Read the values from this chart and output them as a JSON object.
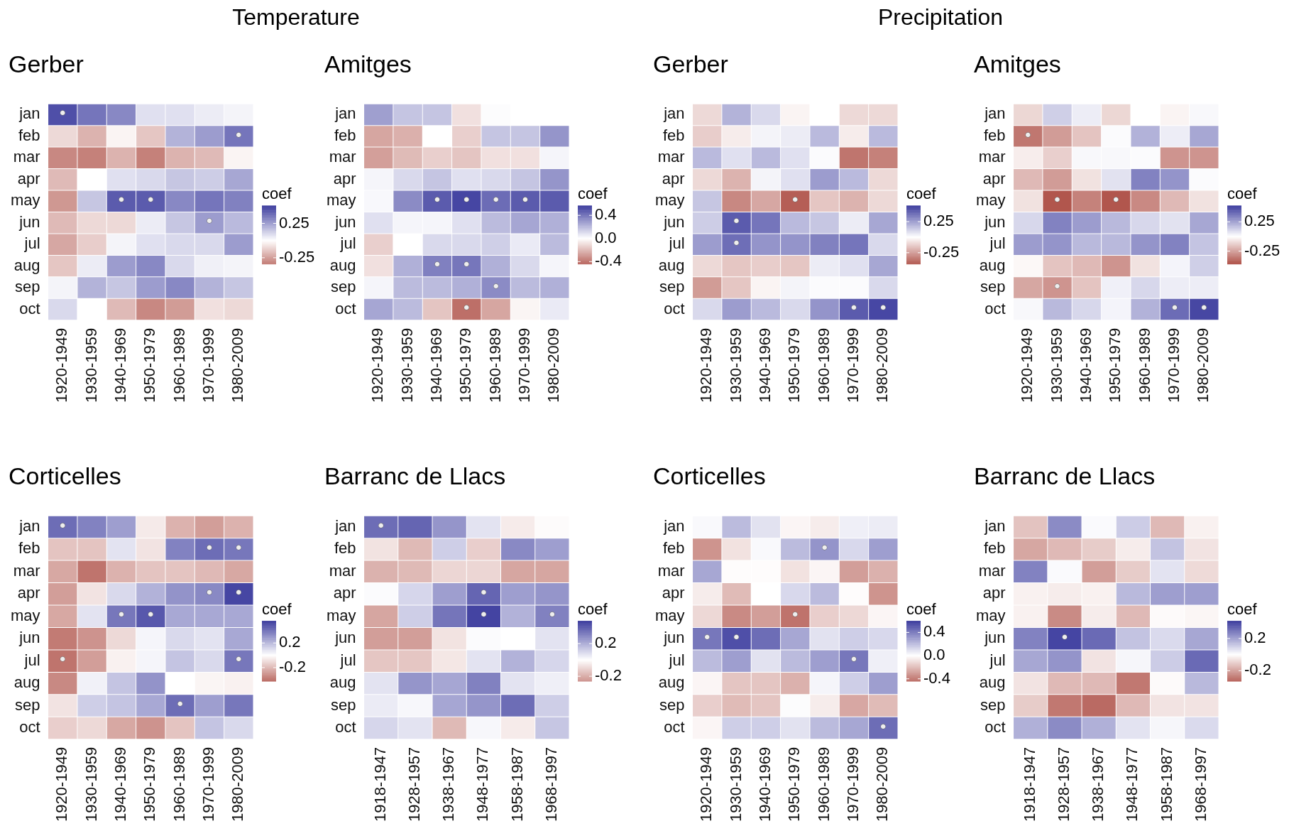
{
  "chart_data": [
    {
      "type": "heatmap",
      "title": "Gerber",
      "annotations": [
        "Temperature"
      ],
      "clabel": "coef",
      "clim": [
        -0.34,
        0.51
      ],
      "cticks": [
        0.25,
        -0.25
      ],
      "categories": [
        "1920-1949",
        "1930-1959",
        "1940-1969",
        "1950-1979",
        "1960-1989",
        "1970-1999",
        "1980-2009"
      ],
      "y_categories": [
        "jan",
        "feb",
        "mar",
        "apr",
        "may",
        "jun",
        "jul",
        "aug",
        "sep",
        "oct"
      ],
      "cells": [
        [
          0.46,
          0.36,
          0.31,
          0.08,
          0.08,
          0.05,
          0.03
        ],
        [
          -0.1,
          -0.2,
          -0.03,
          -0.15,
          0.2,
          0.26,
          0.36
        ],
        [
          -0.31,
          -0.33,
          -0.2,
          -0.33,
          -0.2,
          -0.18,
          -0.03
        ],
        [
          -0.18,
          0,
          0.08,
          0.1,
          0.15,
          0.13,
          0.23
        ],
        [
          -0.27,
          0.15,
          0.43,
          0.43,
          0.31,
          0.36,
          0.33
        ],
        [
          -0.18,
          -0.1,
          -0.1,
          0.05,
          0.15,
          0.26,
          0.18
        ],
        [
          -0.23,
          -0.13,
          0.03,
          0.08,
          0.1,
          0.1,
          0.26
        ],
        [
          -0.15,
          0.05,
          0.26,
          0.31,
          0.1,
          0.04,
          0.03
        ],
        [
          0.03,
          0.2,
          0.15,
          0.26,
          0.31,
          0.2,
          0.15
        ],
        [
          0.1,
          0,
          -0.18,
          -0.31,
          -0.26,
          -0.08,
          -0.1
        ]
      ],
      "cell_labels": [
        [
          "•",
          null,
          null,
          null,
          null,
          null,
          null
        ],
        [
          null,
          null,
          null,
          null,
          null,
          null,
          "•"
        ],
        [
          null,
          null,
          null,
          null,
          null,
          null,
          null
        ],
        [
          null,
          null,
          null,
          null,
          null,
          null,
          null
        ],
        [
          null,
          null,
          "•",
          "•",
          null,
          null,
          null
        ],
        [
          null,
          null,
          null,
          null,
          null,
          "•",
          null
        ],
        [
          null,
          null,
          null,
          null,
          null,
          null,
          null
        ],
        [
          null,
          null,
          null,
          null,
          null,
          null,
          null
        ],
        [
          null,
          null,
          null,
          null,
          null,
          null,
          null
        ],
        [
          null,
          null,
          null,
          null,
          null,
          null,
          null
        ]
      ]
    },
    {
      "type": "heatmap",
      "title": "Amitges",
      "clabel": "coef",
      "clim": [
        -0.44,
        0.57
      ],
      "cticks": [
        0.4,
        {
          "value": 0,
          "label": "0.0"
        },
        -0.4
      ],
      "categories": [
        "1920-1949",
        "1930-1959",
        "1940-1969",
        "1950-1979",
        "1960-1989",
        "1970-1999",
        "1980-2009"
      ],
      "y_categories": [
        "jan",
        "feb",
        "mar",
        "apr",
        "may",
        "jun",
        "jul",
        "aug",
        "sep",
        "oct"
      ],
      "cells": [
        [
          0.28,
          0.17,
          0.17,
          -0.09,
          0.01,
          0,
          0
        ],
        [
          -0.26,
          -0.23,
          0,
          -0.14,
          0.17,
          0.17,
          0.31
        ],
        [
          -0.28,
          -0.2,
          -0.14,
          -0.17,
          -0.09,
          -0.09,
          0.03
        ],
        [
          0.03,
          0.11,
          0.17,
          0.09,
          0.11,
          0.17,
          0.31
        ],
        [
          0.02,
          0.34,
          0.48,
          0.54,
          0.43,
          0.48,
          0.48
        ],
        [
          0.09,
          0.03,
          0.03,
          0.09,
          0.2,
          0.26,
          0.23
        ],
        [
          -0.14,
          0,
          0.11,
          0.11,
          0.14,
          0.06,
          0.2
        ],
        [
          -0.09,
          0.23,
          0.37,
          0.4,
          0.23,
          0.11,
          0.03
        ],
        [
          0.03,
          0.2,
          0.2,
          0.23,
          0.34,
          0.2,
          0.23
        ],
        [
          0.26,
          0.2,
          -0.17,
          -0.42,
          -0.26,
          -0.03,
          0.06
        ]
      ],
      "cell_labels": [
        [
          null,
          null,
          null,
          null,
          null,
          null,
          null
        ],
        [
          null,
          null,
          null,
          null,
          null,
          null,
          null
        ],
        [
          null,
          null,
          null,
          null,
          null,
          null,
          null
        ],
        [
          null,
          null,
          null,
          null,
          null,
          null,
          null
        ],
        [
          null,
          null,
          "•",
          "•",
          "•",
          "•",
          null
        ],
        [
          null,
          null,
          null,
          null,
          null,
          null,
          null
        ],
        [
          null,
          null,
          null,
          null,
          null,
          null,
          null
        ],
        [
          null,
          null,
          "•",
          "•",
          null,
          null,
          null
        ],
        [
          null,
          null,
          null,
          null,
          "•",
          null,
          null
        ],
        [
          null,
          null,
          null,
          "•",
          null,
          null,
          null
        ]
      ]
    },
    {
      "type": "heatmap",
      "title": "Gerber",
      "annotations": [
        "Precipitation"
      ],
      "clabel": "coef",
      "clim": [
        -0.43,
        0.51
      ],
      "cticks": [
        0.25,
        -0.25
      ],
      "categories": [
        "1920-1949",
        "1930-1959",
        "1940-1969",
        "1950-1979",
        "1960-1989",
        "1970-1999",
        "1980-2009"
      ],
      "y_categories": [
        "jan",
        "feb",
        "mar",
        "apr",
        "may",
        "jun",
        "jul",
        "aug",
        "sep",
        "oct"
      ],
      "cells": [
        [
          -0.1,
          0.2,
          0.1,
          -0.03,
          0,
          -0.1,
          -0.1
        ],
        [
          -0.13,
          -0.05,
          0.03,
          0.05,
          0.18,
          -0.05,
          0.18
        ],
        [
          0.18,
          0.08,
          0.18,
          0.08,
          0.01,
          -0.36,
          -0.33
        ],
        [
          -0.1,
          -0.2,
          0.03,
          0.08,
          0.26,
          0.18,
          -0.1
        ],
        [
          0.15,
          -0.31,
          -0.23,
          -0.42,
          -0.15,
          -0.2,
          -0.1
        ],
        [
          0.13,
          0.43,
          0.36,
          0.18,
          0.15,
          0.05,
          0.23
        ],
        [
          0.26,
          0.38,
          0.28,
          0.28,
          0.33,
          0.36,
          0.1
        ],
        [
          -0.1,
          -0.15,
          -0.13,
          -0.15,
          0.05,
          0.08,
          0.23
        ],
        [
          -0.26,
          -0.15,
          -0.03,
          0.03,
          0.01,
          0.01,
          0.1
        ],
        [
          0.1,
          0.26,
          0.18,
          0.1,
          0.28,
          0.43,
          0.48
        ]
      ],
      "cell_labels": [
        [
          null,
          null,
          null,
          null,
          null,
          null,
          null
        ],
        [
          null,
          null,
          null,
          null,
          null,
          null,
          null
        ],
        [
          null,
          null,
          null,
          null,
          null,
          null,
          null
        ],
        [
          null,
          null,
          null,
          null,
          null,
          null,
          null
        ],
        [
          null,
          null,
          null,
          "•",
          null,
          null,
          null
        ],
        [
          null,
          "•",
          null,
          null,
          null,
          null,
          null
        ],
        [
          null,
          "•",
          null,
          null,
          null,
          null,
          null
        ],
        [
          null,
          null,
          null,
          null,
          null,
          null,
          null
        ],
        [
          null,
          null,
          null,
          null,
          null,
          null,
          null
        ],
        [
          null,
          null,
          null,
          null,
          null,
          "•",
          "•"
        ]
      ]
    },
    {
      "type": "heatmap",
      "title": "Amitges",
      "clabel": "coef",
      "clim": [
        -0.47,
        0.53
      ],
      "cticks": [
        0.25,
        -0.25
      ],
      "categories": [
        "1920-1949",
        "1930-1959",
        "1940-1969",
        "1950-1979",
        "1960-1989",
        "1970-1999",
        "1980-2009"
      ],
      "y_categories": [
        "jan",
        "feb",
        "mar",
        "apr",
        "may",
        "jun",
        "jul",
        "aug",
        "sep",
        "oct"
      ],
      "cells": [
        [
          -0.11,
          0.13,
          0.05,
          -0.11,
          0,
          -0.03,
          0.02
        ],
        [
          -0.37,
          -0.27,
          -0.16,
          0.01,
          0.21,
          0.05,
          0.24
        ],
        [
          -0.05,
          -0.13,
          0.02,
          0.02,
          0.01,
          -0.29,
          -0.29
        ],
        [
          -0.19,
          -0.27,
          -0.08,
          0.08,
          0.34,
          0.29,
          0.01
        ],
        [
          -0.08,
          -0.46,
          -0.34,
          -0.46,
          -0.32,
          -0.19,
          -0.08
        ],
        [
          0.11,
          0.34,
          0.27,
          0.19,
          0.11,
          0.08,
          0.24
        ],
        [
          0.27,
          0.29,
          0.19,
          0.19,
          0.29,
          0.34,
          0.16
        ],
        [
          -0.02,
          -0.16,
          -0.19,
          -0.29,
          -0.08,
          0.03,
          0.13
        ],
        [
          -0.24,
          -0.29,
          -0.16,
          0.04,
          0.11,
          0.05,
          0.05
        ],
        [
          0.02,
          0.19,
          0.11,
          0.03,
          0.21,
          0.4,
          0.5
        ]
      ],
      "cell_labels": [
        [
          null,
          null,
          null,
          null,
          null,
          null,
          null
        ],
        [
          "•",
          null,
          null,
          null,
          null,
          null,
          null
        ],
        [
          null,
          null,
          null,
          null,
          null,
          null,
          null
        ],
        [
          null,
          null,
          null,
          null,
          null,
          null,
          null
        ],
        [
          null,
          "•",
          null,
          "•",
          null,
          null,
          null
        ],
        [
          null,
          null,
          null,
          null,
          null,
          null,
          null
        ],
        [
          null,
          null,
          null,
          null,
          null,
          null,
          null
        ],
        [
          null,
          null,
          null,
          null,
          null,
          null,
          null
        ],
        [
          null,
          "•",
          null,
          null,
          null,
          null,
          null
        ],
        [
          null,
          null,
          null,
          null,
          null,
          "•",
          "•"
        ]
      ]
    },
    {
      "type": "heatmap",
      "title": "Corticelles",
      "clabel": "coef",
      "clim": [
        -0.42,
        0.56
      ],
      "cticks": [
        0.2,
        -0.2
      ],
      "categories": [
        "1920-1949",
        "1930-1959",
        "1940-1969",
        "1950-1979",
        "1960-1989",
        "1970-1999",
        "1980-2009"
      ],
      "y_categories": [
        "jan",
        "feb",
        "mar",
        "apr",
        "may",
        "jun",
        "jul",
        "aug",
        "sep",
        "oct"
      ],
      "cells": [
        [
          0.42,
          0.36,
          0.28,
          -0.06,
          -0.22,
          -0.28,
          -0.22
        ],
        [
          -0.17,
          -0.17,
          0.08,
          -0.08,
          0.36,
          0.42,
          0.39
        ],
        [
          -0.25,
          -0.4,
          -0.22,
          -0.17,
          -0.17,
          -0.2,
          -0.25
        ],
        [
          -0.28,
          -0.08,
          0.11,
          0.22,
          0.31,
          0.34,
          0.53
        ],
        [
          -0.25,
          0.08,
          0.39,
          0.48,
          0.25,
          0.25,
          0.25
        ],
        [
          -0.38,
          -0.31,
          -0.11,
          0.03,
          0.11,
          0.08,
          0.25
        ],
        [
          -0.4,
          -0.28,
          -0.04,
          0.03,
          0.17,
          0.11,
          0.39
        ],
        [
          -0.34,
          0.04,
          0.17,
          0.31,
          0,
          -0.03,
          -0.04
        ],
        [
          -0.08,
          0.14,
          0.17,
          0.25,
          0.42,
          0.28,
          0.39
        ],
        [
          -0.14,
          -0.11,
          -0.25,
          -0.31,
          -0.17,
          0.17,
          0.11
        ]
      ],
      "cell_labels": [
        [
          "•",
          null,
          null,
          null,
          null,
          null,
          null
        ],
        [
          null,
          null,
          null,
          null,
          null,
          "•",
          "•"
        ],
        [
          null,
          null,
          null,
          null,
          null,
          null,
          null
        ],
        [
          null,
          null,
          null,
          null,
          null,
          "•",
          "•"
        ],
        [
          null,
          null,
          "•",
          "•",
          null,
          null,
          null
        ],
        [
          null,
          null,
          null,
          null,
          null,
          null,
          null
        ],
        [
          "•",
          null,
          null,
          null,
          null,
          null,
          "•"
        ],
        [
          null,
          null,
          null,
          null,
          null,
          null,
          null
        ],
        [
          null,
          null,
          null,
          null,
          "•",
          null,
          null
        ],
        [
          null,
          null,
          null,
          null,
          null,
          null,
          null
        ]
      ]
    },
    {
      "type": "heatmap",
      "title": "Barranc de Llacs",
      "clabel": "coef",
      "clim": [
        -0.26,
        0.48
      ],
      "cticks": [
        0.2,
        -0.2
      ],
      "categories": [
        "1918-1947",
        "1928-1957",
        "1938-1967",
        "1948-1977",
        "1958-1987",
        "1968-1997"
      ],
      "y_categories": [
        "jan",
        "feb",
        "mar",
        "apr",
        "may",
        "jun",
        "jul",
        "aug",
        "sep",
        "oct"
      ],
      "cells": [
        [
          0.36,
          0.38,
          0.26,
          0.07,
          -0.05,
          -0.01
        ],
        [
          -0.07,
          -0.17,
          0.12,
          -0.12,
          0.29,
          0.24
        ],
        [
          -0.19,
          -0.17,
          -0.1,
          -0.1,
          -0.22,
          -0.22
        ],
        [
          0.01,
          0.1,
          0.24,
          0.38,
          0.24,
          0.26
        ],
        [
          -0.22,
          0.12,
          0.34,
          0.46,
          0.19,
          0.31
        ],
        [
          -0.24,
          -0.24,
          -0.07,
          0.01,
          0,
          0.07
        ],
        [
          -0.14,
          -0.14,
          -0.06,
          0.07,
          0.19,
          0.1
        ],
        [
          0.07,
          0.26,
          0.22,
          0.31,
          0.07,
          0.04
        ],
        [
          0.05,
          0.02,
          0.22,
          0.26,
          0.36,
          0.12
        ],
        [
          0.1,
          0.07,
          -0.17,
          0.02,
          -0.05,
          0.14
        ]
      ],
      "cell_labels": [
        [
          "•",
          null,
          null,
          null,
          null,
          null
        ],
        [
          null,
          null,
          null,
          null,
          null,
          null
        ],
        [
          null,
          null,
          null,
          null,
          null,
          null
        ],
        [
          null,
          null,
          null,
          "•",
          null,
          null
        ],
        [
          null,
          null,
          null,
          "•",
          null,
          "•"
        ],
        [
          null,
          null,
          null,
          null,
          null,
          null
        ],
        [
          null,
          null,
          null,
          null,
          null,
          null
        ],
        [
          null,
          null,
          null,
          null,
          null,
          null
        ],
        [
          null,
          null,
          null,
          null,
          null,
          null
        ],
        [
          null,
          null,
          null,
          null,
          null,
          null
        ]
      ]
    },
    {
      "type": "heatmap",
      "title": "Corticelles",
      "clabel": "coef",
      "clim": [
        -0.44,
        0.6
      ],
      "cticks": [
        0.4,
        {
          "value": 0,
          "label": "0.0"
        },
        -0.4
      ],
      "categories": [
        "1920-1949",
        "1930-1959",
        "1940-1969",
        "1950-1979",
        "1960-1989",
        "1970-1999",
        "1980-2009"
      ],
      "y_categories": [
        "jan",
        "feb",
        "mar",
        "apr",
        "may",
        "jun",
        "jul",
        "aug",
        "sep",
        "oct"
      ],
      "cells": [
        [
          0.02,
          0.21,
          0.09,
          -0.03,
          -0.06,
          0.05,
          0.06
        ],
        [
          -0.33,
          -0.09,
          0.02,
          0.21,
          0.33,
          0.12,
          0.3
        ],
        [
          0.27,
          -0.01,
          -0.01,
          -0.09,
          -0.03,
          -0.3,
          -0.24
        ],
        [
          -0.06,
          -0.21,
          0,
          0.12,
          0.21,
          -0.01,
          -0.33
        ],
        [
          -0.12,
          -0.36,
          -0.3,
          -0.43,
          -0.15,
          -0.12,
          -0.03
        ],
        [
          0.42,
          0.54,
          0.45,
          0.27,
          0.09,
          0.15,
          0.12
        ],
        [
          0.21,
          0.3,
          0.09,
          0.21,
          0.3,
          0.42,
          0.05
        ],
        [
          -0.03,
          -0.18,
          -0.18,
          -0.24,
          0.03,
          0.15,
          0.3
        ],
        [
          -0.15,
          -0.21,
          -0.18,
          0.01,
          -0.06,
          -0.27,
          -0.21
        ],
        [
          -0.03,
          0.15,
          0.15,
          0.09,
          0.21,
          0.27,
          0.45
        ]
      ],
      "cell_labels": [
        [
          null,
          null,
          null,
          null,
          null,
          null,
          null
        ],
        [
          null,
          null,
          null,
          null,
          "•",
          null,
          null
        ],
        [
          null,
          null,
          null,
          null,
          null,
          null,
          null
        ],
        [
          null,
          null,
          null,
          null,
          null,
          null,
          null
        ],
        [
          null,
          null,
          null,
          "•",
          null,
          null,
          null
        ],
        [
          "•",
          "•",
          null,
          null,
          null,
          null,
          null
        ],
        [
          null,
          null,
          null,
          null,
          null,
          "•",
          null
        ],
        [
          null,
          null,
          null,
          null,
          null,
          null,
          null
        ],
        [
          null,
          null,
          null,
          null,
          null,
          null,
          null
        ],
        [
          null,
          null,
          null,
          null,
          null,
          null,
          "•"
        ]
      ]
    },
    {
      "type": "heatmap",
      "title": "Barranc de Llacs",
      "clabel": "coef",
      "clim": [
        -0.33,
        0.42
      ],
      "cticks": [
        0.2,
        -0.2
      ],
      "categories": [
        "1918-1947",
        "1928-1957",
        "1938-1967",
        "1948-1977",
        "1958-1987",
        "1968-1997"
      ],
      "y_categories": [
        "jan",
        "feb",
        "mar",
        "apr",
        "may",
        "jun",
        "jul",
        "aug",
        "sep",
        "oct"
      ],
      "cells": [
        [
          -0.13,
          0.25,
          0.01,
          0.11,
          -0.15,
          -0.03
        ],
        [
          -0.19,
          -0.15,
          -0.11,
          -0.04,
          0.13,
          -0.06
        ],
        [
          0.27,
          0.01,
          -0.21,
          -0.11,
          0.06,
          -0.08
        ],
        [
          -0.03,
          -0.04,
          -0.03,
          0.15,
          0.21,
          0.21
        ],
        [
          -0.03,
          -0.25,
          -0.04,
          -0.15,
          -0.01,
          -0.02
        ],
        [
          0.27,
          0.4,
          0.32,
          0.13,
          0.08,
          0.19
        ],
        [
          0.19,
          0.23,
          -0.06,
          0.02,
          0.11,
          0.32
        ],
        [
          -0.06,
          -0.15,
          -0.15,
          -0.29,
          -0.01,
          0.15
        ],
        [
          -0.11,
          -0.29,
          -0.32,
          -0.15,
          -0.06,
          -0.06
        ],
        [
          0.17,
          0.25,
          0.17,
          0.06,
          0.02,
          0.08
        ]
      ],
      "cell_labels": [
        [
          null,
          null,
          null,
          null,
          null,
          null
        ],
        [
          null,
          null,
          null,
          null,
          null,
          null
        ],
        [
          null,
          null,
          null,
          null,
          null,
          null
        ],
        [
          null,
          null,
          null,
          null,
          null,
          null
        ],
        [
          null,
          null,
          null,
          null,
          null,
          null
        ],
        [
          null,
          "•",
          null,
          null,
          null,
          null
        ],
        [
          null,
          null,
          null,
          null,
          null,
          null
        ],
        [
          null,
          null,
          null,
          null,
          null,
          null
        ],
        [
          null,
          null,
          null,
          null,
          null,
          null
        ],
        [
          null,
          null,
          null,
          null,
          null,
          null
        ]
      ]
    }
  ]
}
